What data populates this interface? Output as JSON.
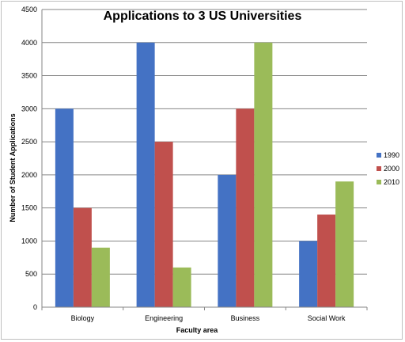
{
  "chart_data": {
    "type": "bar",
    "title": "Applications to 3 US Universities",
    "xlabel": "Faculty area",
    "ylabel": "Number of Student Applications",
    "categories": [
      "Biology",
      "Engineering",
      "Business",
      "Social Work"
    ],
    "series": [
      {
        "name": "1990",
        "values": [
          3000,
          4000,
          2000,
          1000
        ],
        "color": "#4472C4"
      },
      {
        "name": "2000",
        "values": [
          1500,
          2500,
          3000,
          1400
        ],
        "color": "#C0504D"
      },
      {
        "name": "2010",
        "values": [
          900,
          600,
          4000,
          1900
        ],
        "color": "#9BBB59"
      }
    ],
    "ylim": [
      0,
      4500
    ],
    "yticks": [
      "0",
      "500",
      "1000",
      "1500",
      "2000",
      "2500",
      "3000",
      "3500",
      "4000",
      "4500"
    ],
    "grid": true,
    "legend_position": "right"
  }
}
